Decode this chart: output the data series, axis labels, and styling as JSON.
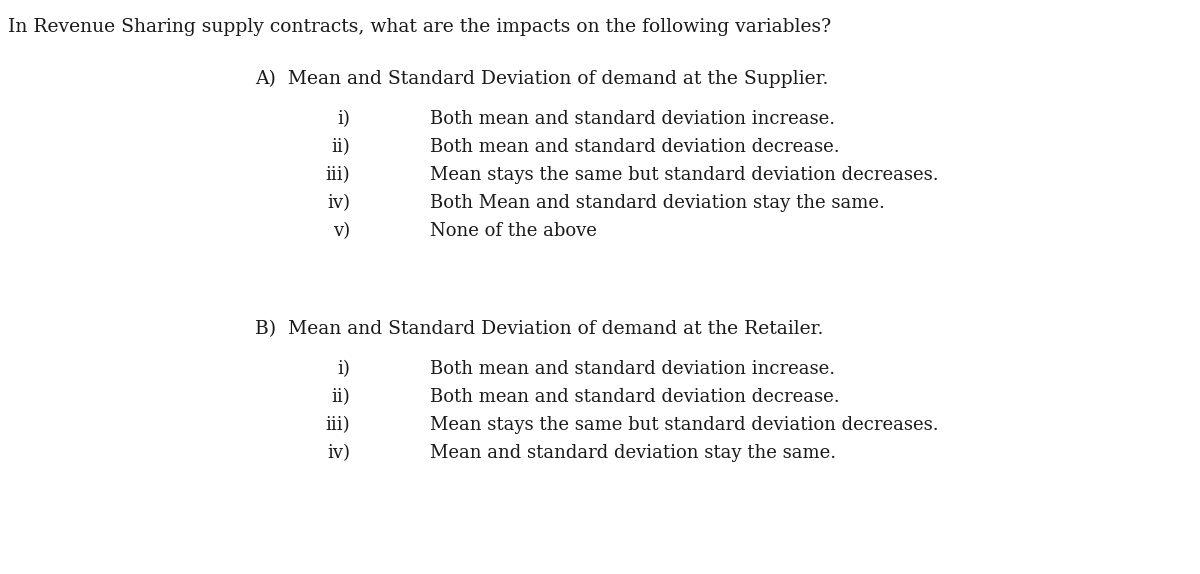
{
  "background_color": "#ffffff",
  "text_color": "#1a1a1a",
  "font_family": "DejaVu Serif",
  "main_question": "In Revenue Sharing supply contracts, what are the impacts on the following variables?",
  "main_question_fontsize": 13.5,
  "section_A_header": "A)  Mean and Standard Deviation of demand at the Supplier.",
  "section_A_header_fontsize": 13.5,
  "section_A_items": [
    [
      "i)",
      "Both mean and standard deviation increase."
    ],
    [
      "ii)",
      "Both mean and standard deviation decrease."
    ],
    [
      "iii)",
      "Mean stays the same but standard deviation decreases."
    ],
    [
      "iv)",
      "Both Mean and standard deviation stay the same."
    ],
    [
      "v)",
      "None of the above"
    ]
  ],
  "section_A_fontsize": 13.0,
  "section_B_header": "B)  Mean and Standard Deviation of demand at the Retailer.",
  "section_B_header_fontsize": 13.5,
  "section_B_items": [
    [
      "i)",
      "Both mean and standard deviation increase."
    ],
    [
      "ii)",
      "Both mean and standard deviation decrease."
    ],
    [
      "iii)",
      "Mean stays the same but standard deviation decreases."
    ],
    [
      "iv)",
      "Mean and standard deviation stay the same."
    ]
  ],
  "section_B_fontsize": 13.0
}
